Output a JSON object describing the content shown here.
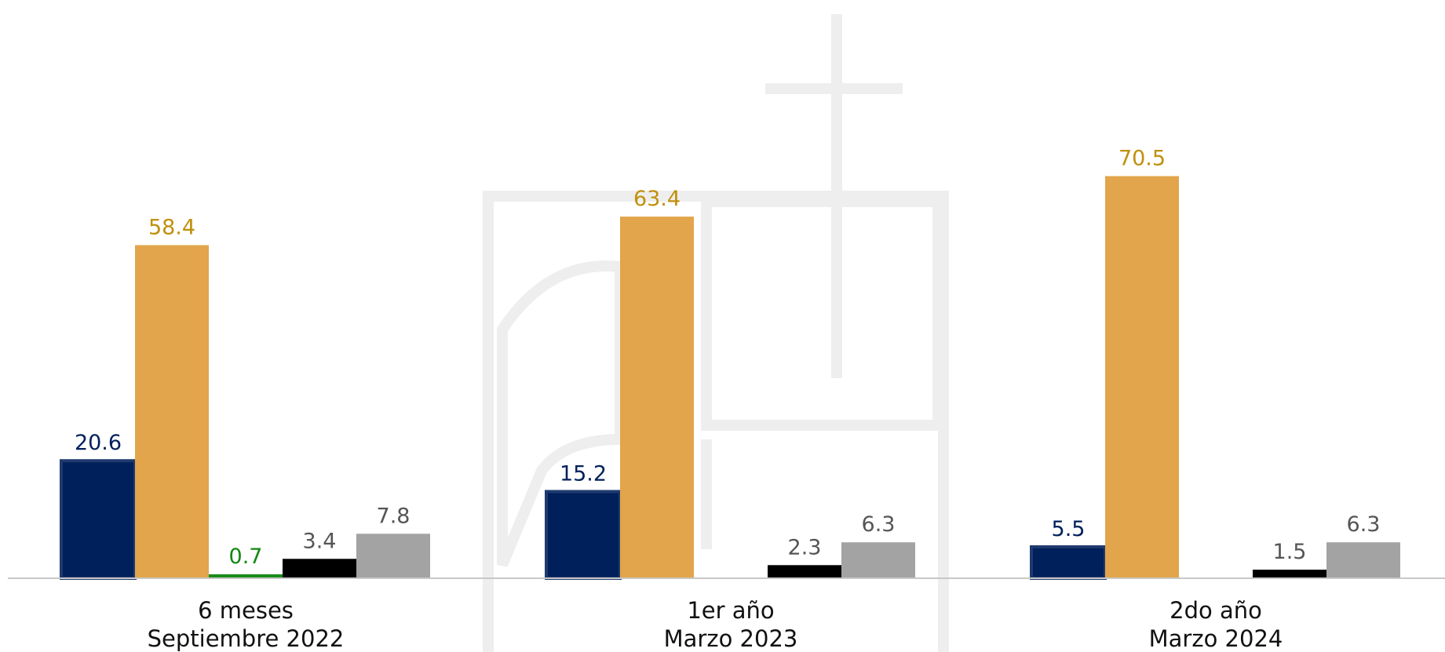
{
  "chart_data": {
    "type": "bar",
    "categories": [
      [
        "6 meses",
        "Septiembre 2022"
      ],
      [
        "1er año",
        "Marzo 2023"
      ],
      [
        "2do año",
        "Marzo 2024"
      ]
    ],
    "series": [
      {
        "color": "#00205b",
        "values": [
          20.6,
          15.2,
          5.5
        ]
      },
      {
        "color": "#e2a54b",
        "label_color": "#c0900a",
        "values": [
          58.4,
          63.4,
          70.5
        ]
      },
      {
        "color": "#1a8c1a",
        "label_color": "#118811",
        "values": [
          0.7,
          null,
          null
        ]
      },
      {
        "color": "#000000",
        "label_color": "#555555",
        "values": [
          3.4,
          2.3,
          1.5
        ]
      },
      {
        "color": "#a3a3a3",
        "label_color": "#555555",
        "values": [
          7.8,
          6.3,
          6.3
        ]
      }
    ],
    "ylim": [
      0,
      75
    ],
    "grid": false,
    "legend": false
  }
}
